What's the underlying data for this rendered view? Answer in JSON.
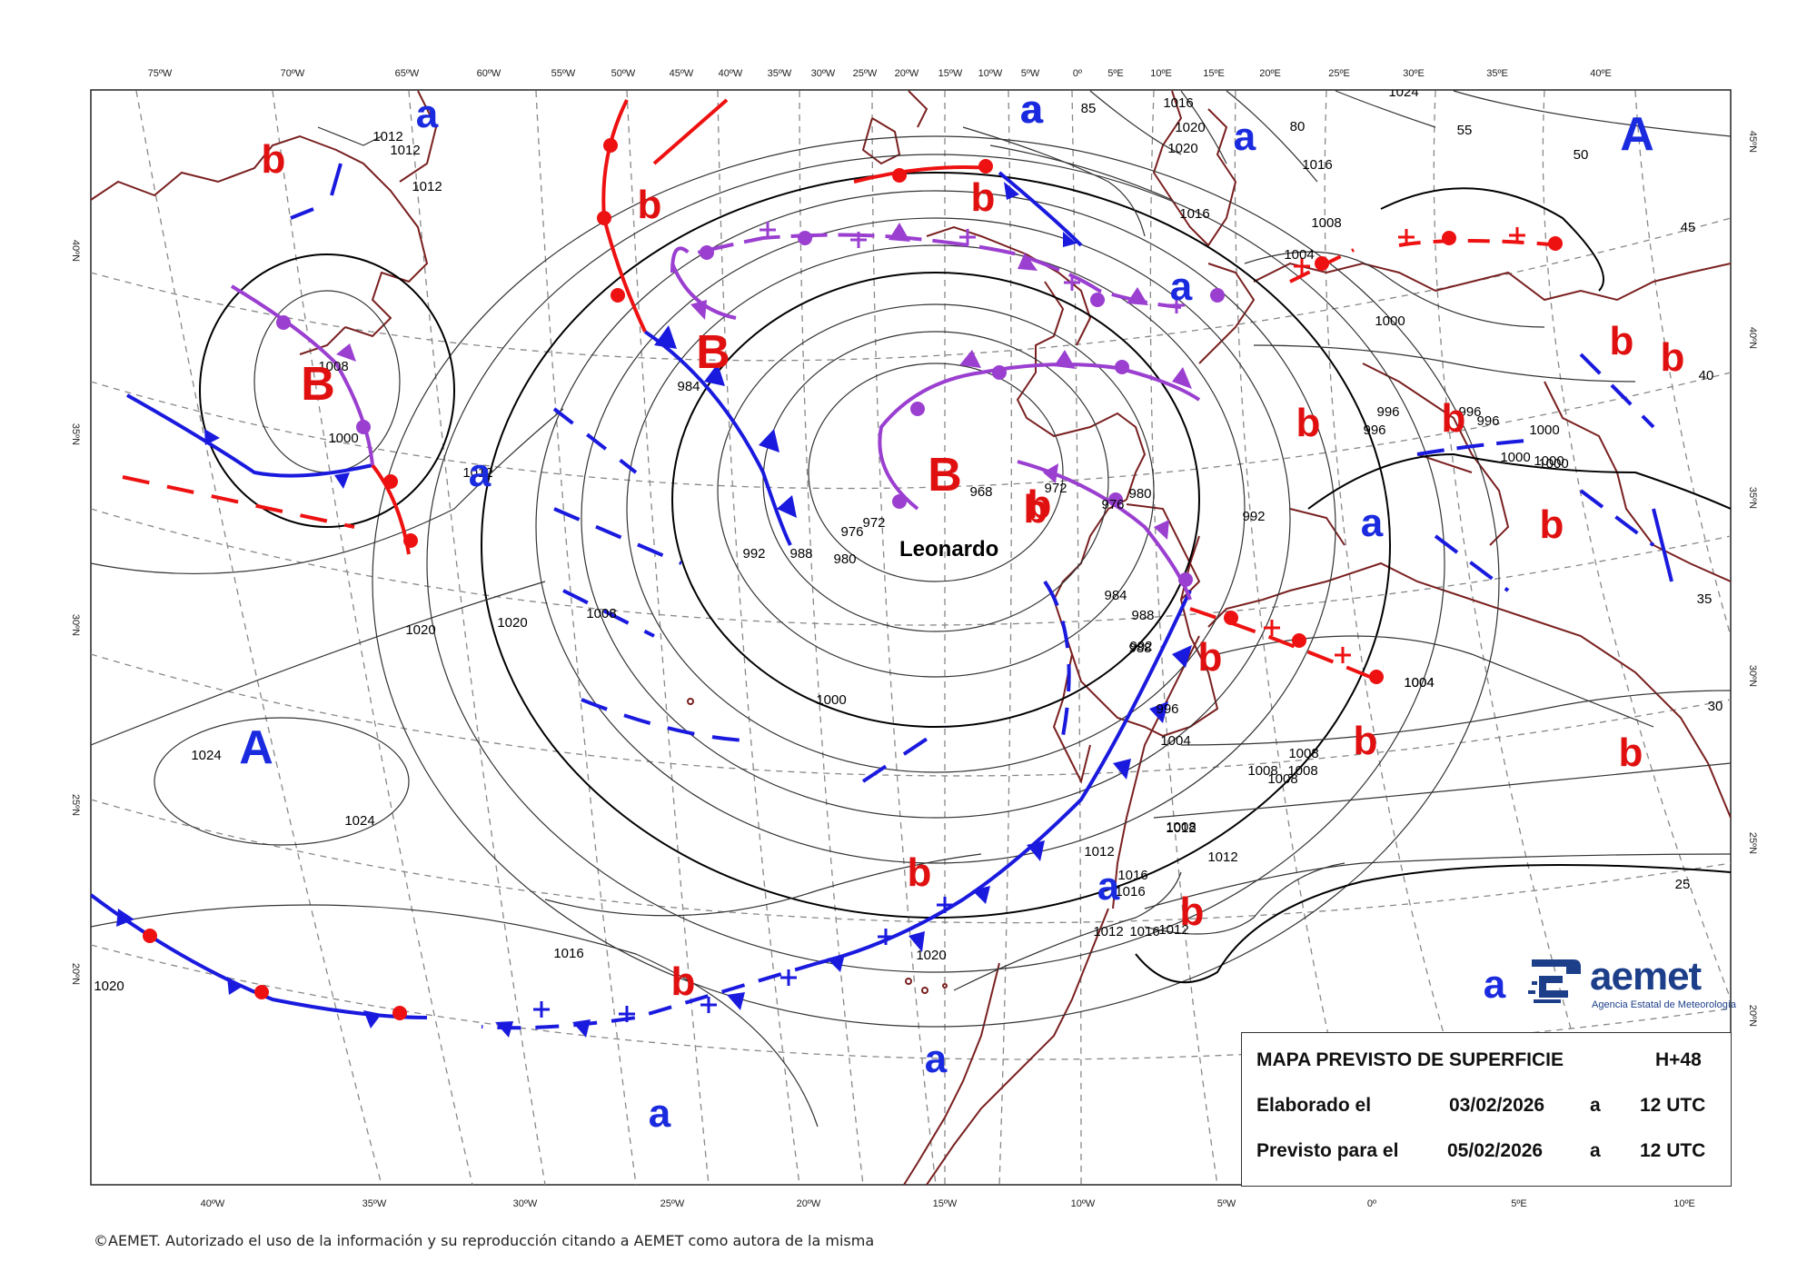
{
  "map": {
    "top_lon_labels": [
      "75ºW",
      "70ºW",
      "65ºW",
      "60ºW",
      "55ºW",
      "50ºW",
      "45ºW",
      "40ºW",
      "35ºW",
      "30ºW",
      "25ºW",
      "20ºW",
      "15ºW",
      "10ºW",
      "5ºW",
      "0º",
      "5ºE",
      "10ºE",
      "15ºE",
      "20ºE",
      "25ºE",
      "30ºE",
      "35ºE",
      "40ºE"
    ],
    "bottom_lon_labels": [
      "40ºW",
      "35ºW",
      "30ºW",
      "25ºW",
      "20ºW",
      "15ºW",
      "10ºW",
      "5ºW",
      "0º",
      "5ºE",
      "10ºE"
    ],
    "left_lat_labels": [
      "40ºN",
      "35ºN",
      "30ºN",
      "25ºN",
      "20ºN"
    ],
    "right_lat_labels": [
      "45ºN",
      "40ºN",
      "35ºN",
      "30ºN",
      "25ºN",
      "20ºN"
    ],
    "right_inner_labels": [
      "55",
      "50",
      "45",
      "40",
      "35",
      "30",
      "25",
      "85",
      "80"
    ],
    "isobar_labels": [
      "1012",
      "1012",
      "1012",
      "1012",
      "1008",
      "1000",
      "1016",
      "1020",
      "1020",
      "1016",
      "1016",
      "1024",
      "1008",
      "1004",
      "1000",
      "996",
      "996",
      "996",
      "996",
      "1000",
      "1000",
      "1000",
      "1004",
      "1008",
      "1008",
      "1012",
      "1012",
      "1016",
      "1016",
      "1012",
      "1020",
      "1020",
      "1016",
      "1024",
      "1024",
      "1020",
      "1008",
      "984",
      "992",
      "988",
      "980",
      "976",
      "972",
      "968",
      "972",
      "976",
      "980",
      "988",
      "992",
      "984",
      "988",
      "992",
      "996",
      "1000",
      "1004",
      "1008",
      "1008",
      "1012",
      "1016",
      "1020",
      "1012",
      "1008",
      "1004",
      "1000"
    ],
    "pressure_centers": [
      {
        "text": "A",
        "kind": "high"
      },
      {
        "text": "A",
        "kind": "high"
      },
      {
        "text": "B",
        "kind": "low"
      },
      {
        "text": "B",
        "kind": "low"
      },
      {
        "text": "B",
        "kind": "low"
      }
    ],
    "small_lows": [
      "b",
      "b",
      "b",
      "b",
      "b",
      "b",
      "b",
      "b",
      "b",
      "b",
      "b",
      "b",
      "b",
      "b",
      "b",
      "b"
    ],
    "small_highs": [
      "a",
      "a",
      "a",
      "a",
      "a",
      "a",
      "a",
      "a",
      "a",
      "a",
      "a"
    ],
    "storm_name": "Leonardo",
    "colors": {
      "cold": "#1a1adf",
      "warm": "#ee1111",
      "occluded": "#9a3fd0",
      "land": "#7a2020",
      "isobar": "#333333",
      "grid": "#888888",
      "high": "#1a2adf",
      "low": "#e01010"
    }
  },
  "info_box": {
    "title": "MAPA PREVISTO DE SUPERFICIE",
    "lead_time": "H+48",
    "issued_label": "Elaborado el",
    "issued_date": "03/02/2026",
    "issued_sep": "a",
    "issued_time": "12 UTC",
    "valid_label": "Previsto para el",
    "valid_date": "05/02/2026",
    "valid_sep": "a",
    "valid_time": "12 UTC"
  },
  "logo": {
    "word": "aemet",
    "sub": "Agencia Estatal de Meteorología"
  },
  "copyright": "©AEMET. Autorizado el uso de la información y su reproducción citando a AEMET como autora de la misma"
}
